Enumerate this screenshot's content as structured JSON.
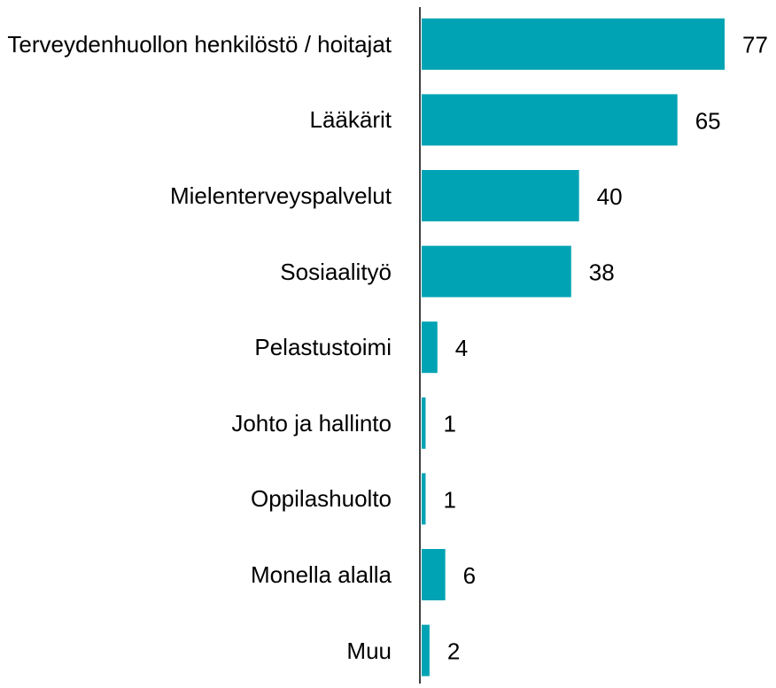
{
  "chart_data": {
    "type": "bar",
    "orientation": "horizontal",
    "categories": [
      "Terveydenhuollon henkilöstö / hoitajat",
      "Lääkärit",
      "Mielenterveyspalvelut",
      "Sosiaalityö",
      "Pelastustoimi",
      "Johto ja hallinto",
      "Oppilashuolto",
      "Monella alalla",
      "Muu"
    ],
    "values": [
      77,
      65,
      40,
      38,
      4,
      1,
      1,
      6,
      2
    ],
    "color": "#00a3b4"
  }
}
